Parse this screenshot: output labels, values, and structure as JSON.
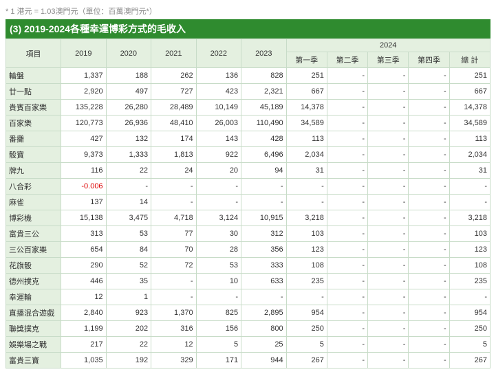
{
  "note": "* 1 港元 = 1.03澳門元（單位：百萬澳門元*）",
  "title": "(3) 2019-2024各種幸運博彩方式的毛收入",
  "headers": {
    "item": "項目",
    "years": [
      "2019",
      "2020",
      "2021",
      "2022",
      "2023"
    ],
    "group": "2024",
    "quarters": [
      "第一季",
      "第二季",
      "第三季",
      "第四季",
      "總 計"
    ]
  },
  "rows": [
    {
      "label": "輪盤",
      "v": [
        "1,337",
        "188",
        "262",
        "136",
        "828",
        "251",
        "-",
        "-",
        "-",
        "251"
      ]
    },
    {
      "label": "廿一點",
      "v": [
        "2,920",
        "497",
        "727",
        "423",
        "2,321",
        "667",
        "-",
        "-",
        "-",
        "667"
      ]
    },
    {
      "label": "貴賓百家樂",
      "v": [
        "135,228",
        "26,280",
        "28,489",
        "10,149",
        "45,189",
        "14,378",
        "-",
        "-",
        "-",
        "14,378"
      ]
    },
    {
      "label": "百家樂",
      "v": [
        "120,773",
        "26,936",
        "48,410",
        "26,003",
        "110,490",
        "34,589",
        "-",
        "-",
        "-",
        "34,589"
      ]
    },
    {
      "label": "番攤",
      "v": [
        "427",
        "132",
        "174",
        "143",
        "428",
        "113",
        "-",
        "-",
        "-",
        "113"
      ]
    },
    {
      "label": "骰寶",
      "v": [
        "9,373",
        "1,333",
        "1,813",
        "922",
        "6,496",
        "2,034",
        "-",
        "-",
        "-",
        "2,034"
      ]
    },
    {
      "label": "牌九",
      "v": [
        "116",
        "22",
        "24",
        "20",
        "94",
        "31",
        "-",
        "-",
        "-",
        "31"
      ]
    },
    {
      "label": "八合彩",
      "v": [
        "-0.006",
        "-",
        "-",
        "-",
        "-",
        "-",
        "-",
        "-",
        "-",
        "-"
      ],
      "neg": [
        0
      ]
    },
    {
      "label": "麻雀",
      "v": [
        "137",
        "14",
        "-",
        "-",
        "-",
        "-",
        "-",
        "-",
        "-",
        "-"
      ]
    },
    {
      "label": "博彩機",
      "v": [
        "15,138",
        "3,475",
        "4,718",
        "3,124",
        "10,915",
        "3,218",
        "-",
        "-",
        "-",
        "3,218"
      ]
    },
    {
      "label": "富貴三公",
      "v": [
        "313",
        "53",
        "77",
        "30",
        "312",
        "103",
        "-",
        "-",
        "-",
        "103"
      ]
    },
    {
      "label": "三公百家樂",
      "v": [
        "654",
        "84",
        "70",
        "28",
        "356",
        "123",
        "-",
        "-",
        "-",
        "123"
      ]
    },
    {
      "label": "花旗骰",
      "v": [
        "290",
        "52",
        "72",
        "53",
        "333",
        "108",
        "-",
        "-",
        "-",
        "108"
      ]
    },
    {
      "label": "德州撲克",
      "v": [
        "446",
        "35",
        "-",
        "10",
        "633",
        "235",
        "-",
        "-",
        "-",
        "235"
      ]
    },
    {
      "label": "幸運輪",
      "v": [
        "12",
        "1",
        "-",
        "-",
        "-",
        "-",
        "-",
        "-",
        "-",
        "-"
      ]
    },
    {
      "label": "直播混合遊戲",
      "v": [
        "2,840",
        "923",
        "1,370",
        "825",
        "2,895",
        "954",
        "-",
        "-",
        "-",
        "954"
      ]
    },
    {
      "label": "聯獎撲克",
      "v": [
        "1,199",
        "202",
        "316",
        "156",
        "800",
        "250",
        "-",
        "-",
        "-",
        "250"
      ]
    },
    {
      "label": "娛樂場之戰",
      "v": [
        "217",
        "22",
        "12",
        "5",
        "25",
        "5",
        "-",
        "-",
        "-",
        "5"
      ]
    },
    {
      "label": "富貴三寶",
      "v": [
        "1,035",
        "192",
        "329",
        "171",
        "944",
        "267",
        "-",
        "-",
        "-",
        "267"
      ]
    }
  ]
}
